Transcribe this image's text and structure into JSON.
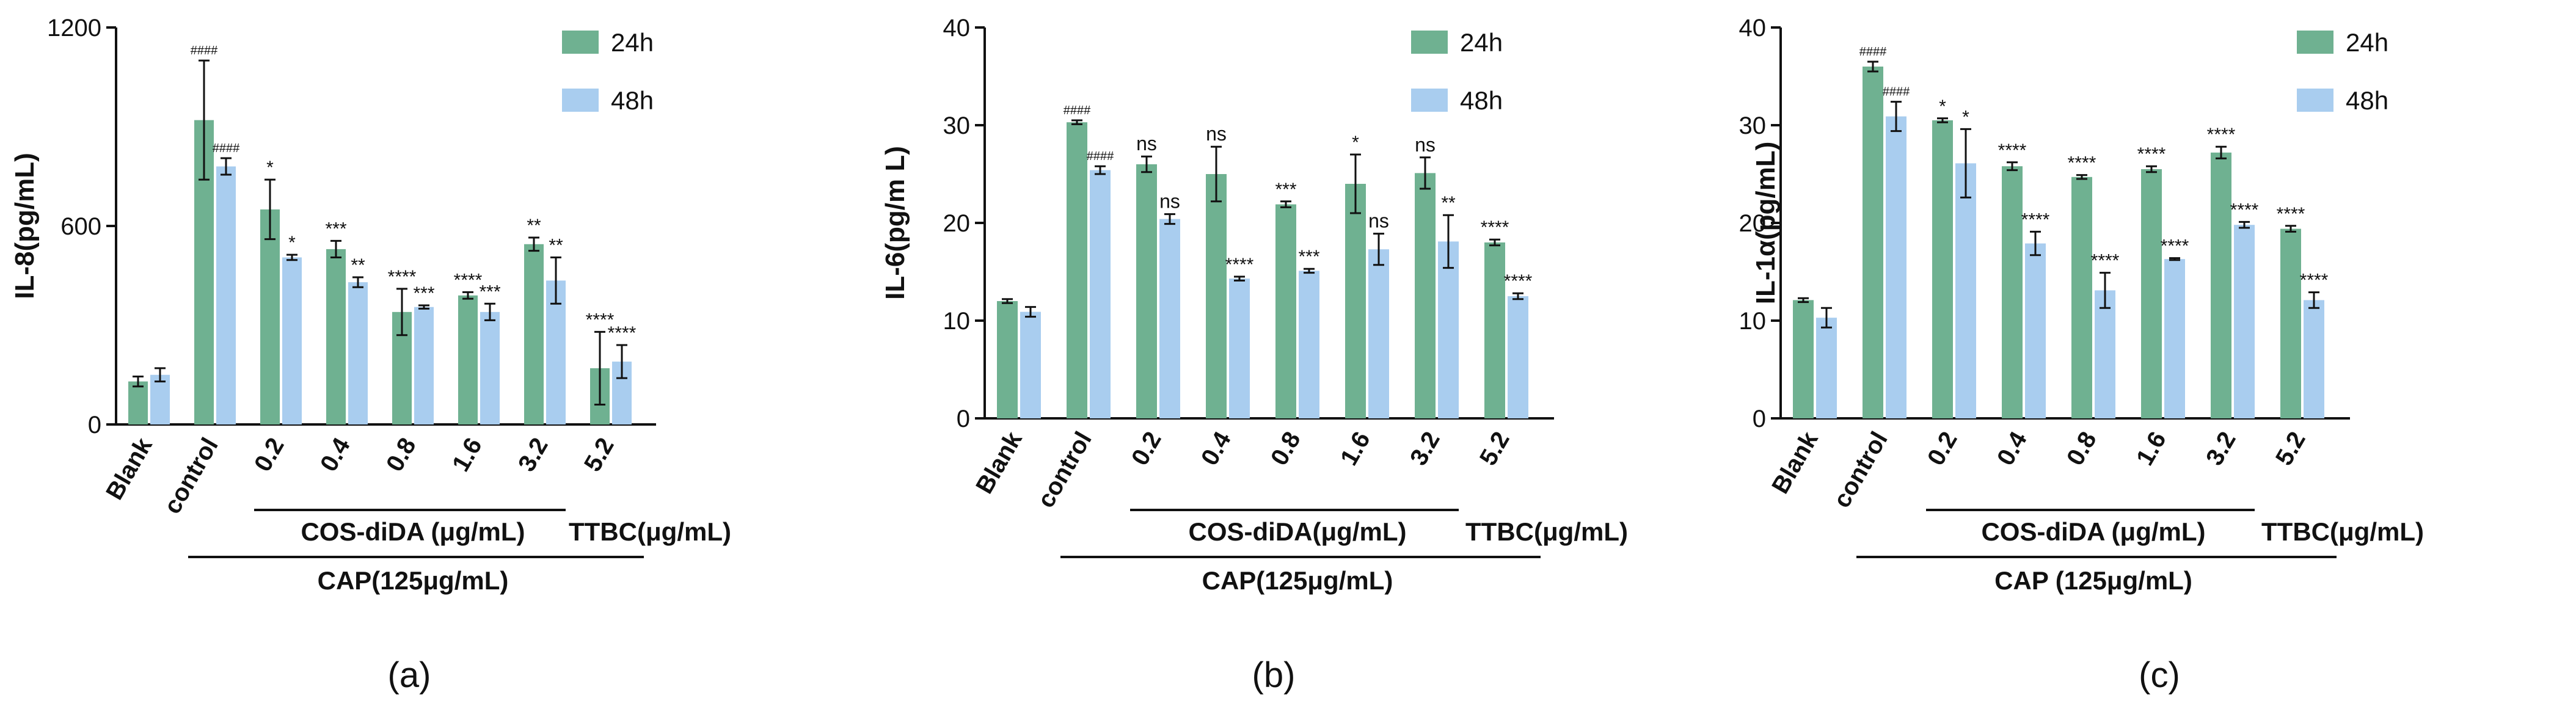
{
  "chart_data": [
    {
      "type": "bar",
      "panel_label": "(a)",
      "ylabel": "IL-8(pg/mL)",
      "ylim": [
        0,
        1200
      ],
      "yticks": [
        0,
        600,
        1200
      ],
      "categories": [
        "Blank",
        "control",
        "0.2",
        "0.4",
        "0.8",
        "1.6",
        "3.2",
        "5.2"
      ],
      "series": [
        {
          "name": "24h",
          "color": "#6fb191",
          "values": [
            130,
            920,
            650,
            530,
            340,
            390,
            545,
            170
          ],
          "errors": [
            15,
            180,
            90,
            25,
            70,
            10,
            20,
            110
          ],
          "sig": [
            "",
            "####",
            "*",
            "***",
            "****",
            "****",
            "**",
            "****"
          ]
        },
        {
          "name": "48h",
          "color": "#a9cdef",
          "values": [
            150,
            780,
            505,
            430,
            355,
            340,
            435,
            190
          ],
          "errors": [
            20,
            25,
            8,
            15,
            5,
            25,
            70,
            50
          ],
          "sig": [
            "",
            "####",
            "*",
            "**",
            "***",
            "***",
            "**",
            "****"
          ]
        }
      ],
      "group_labels": {
        "cos": "COS-diDA (μg/mL)",
        "ttbc": "TTBC(μg/mL)",
        "cap": "CAP(125μg/mL)"
      }
    },
    {
      "type": "bar",
      "panel_label": "(b)",
      "ylabel": "IL-6(pg/m L)",
      "ylim": [
        0,
        40
      ],
      "yticks": [
        0,
        10,
        20,
        30,
        40
      ],
      "categories": [
        "Blank",
        "control",
        "0.2",
        "0.4",
        "0.8",
        "1.6",
        "3.2",
        "5.2"
      ],
      "series": [
        {
          "name": "24h",
          "color": "#6fb191",
          "values": [
            12.0,
            30.3,
            26.0,
            25.0,
            21.9,
            24.0,
            25.1,
            18.0
          ],
          "errors": [
            0.2,
            0.2,
            0.8,
            2.8,
            0.3,
            3.0,
            1.6,
            0.3
          ],
          "sig": [
            "",
            "####",
            "ns",
            "ns",
            "***",
            "*",
            "ns",
            "****"
          ]
        },
        {
          "name": "48h",
          "color": "#a9cdef",
          "values": [
            10.9,
            25.4,
            20.4,
            14.3,
            15.1,
            17.3,
            18.1,
            12.5
          ],
          "errors": [
            0.5,
            0.4,
            0.5,
            0.2,
            0.2,
            1.6,
            2.7,
            0.3
          ],
          "sig": [
            "",
            "####",
            "ns",
            "****",
            "***",
            "ns",
            "**",
            "****"
          ]
        }
      ],
      "group_labels": {
        "cos": "COS-diDA(μg/mL)",
        "ttbc": "TTBC(μg/mL)",
        "cap": "CAP(125μg/mL)"
      }
    },
    {
      "type": "bar",
      "panel_label": "(c)",
      "ylabel": "IL-1α(pg/mL)",
      "ylim": [
        0,
        40
      ],
      "yticks": [
        0,
        10,
        20,
        30,
        40
      ],
      "categories": [
        "Blank",
        "control",
        "0.2",
        "0.4",
        "0.8",
        "1.6",
        "3.2",
        "5.2"
      ],
      "series": [
        {
          "name": "24h",
          "color": "#6fb191",
          "values": [
            12.1,
            36.0,
            30.5,
            25.8,
            24.7,
            25.5,
            27.2,
            19.4
          ],
          "errors": [
            0.2,
            0.5,
            0.2,
            0.4,
            0.2,
            0.3,
            0.6,
            0.3
          ],
          "sig": [
            "",
            "####",
            "*",
            "****",
            "****",
            "****",
            "****",
            "****"
          ]
        },
        {
          "name": "48h",
          "color": "#a9cdef",
          "values": [
            10.3,
            30.9,
            26.1,
            17.9,
            13.1,
            16.3,
            19.8,
            12.1
          ],
          "errors": [
            1.0,
            1.5,
            3.5,
            1.2,
            1.8,
            0.1,
            0.3,
            0.8
          ],
          "sig": [
            "",
            "####",
            "*",
            "****",
            "****",
            "****",
            "****",
            "****"
          ]
        }
      ],
      "group_labels": {
        "cos": "COS-diDA (μg/mL)",
        "ttbc": "TTBC(μg/mL)",
        "cap": "CAP (125μg/mL)"
      }
    }
  ]
}
